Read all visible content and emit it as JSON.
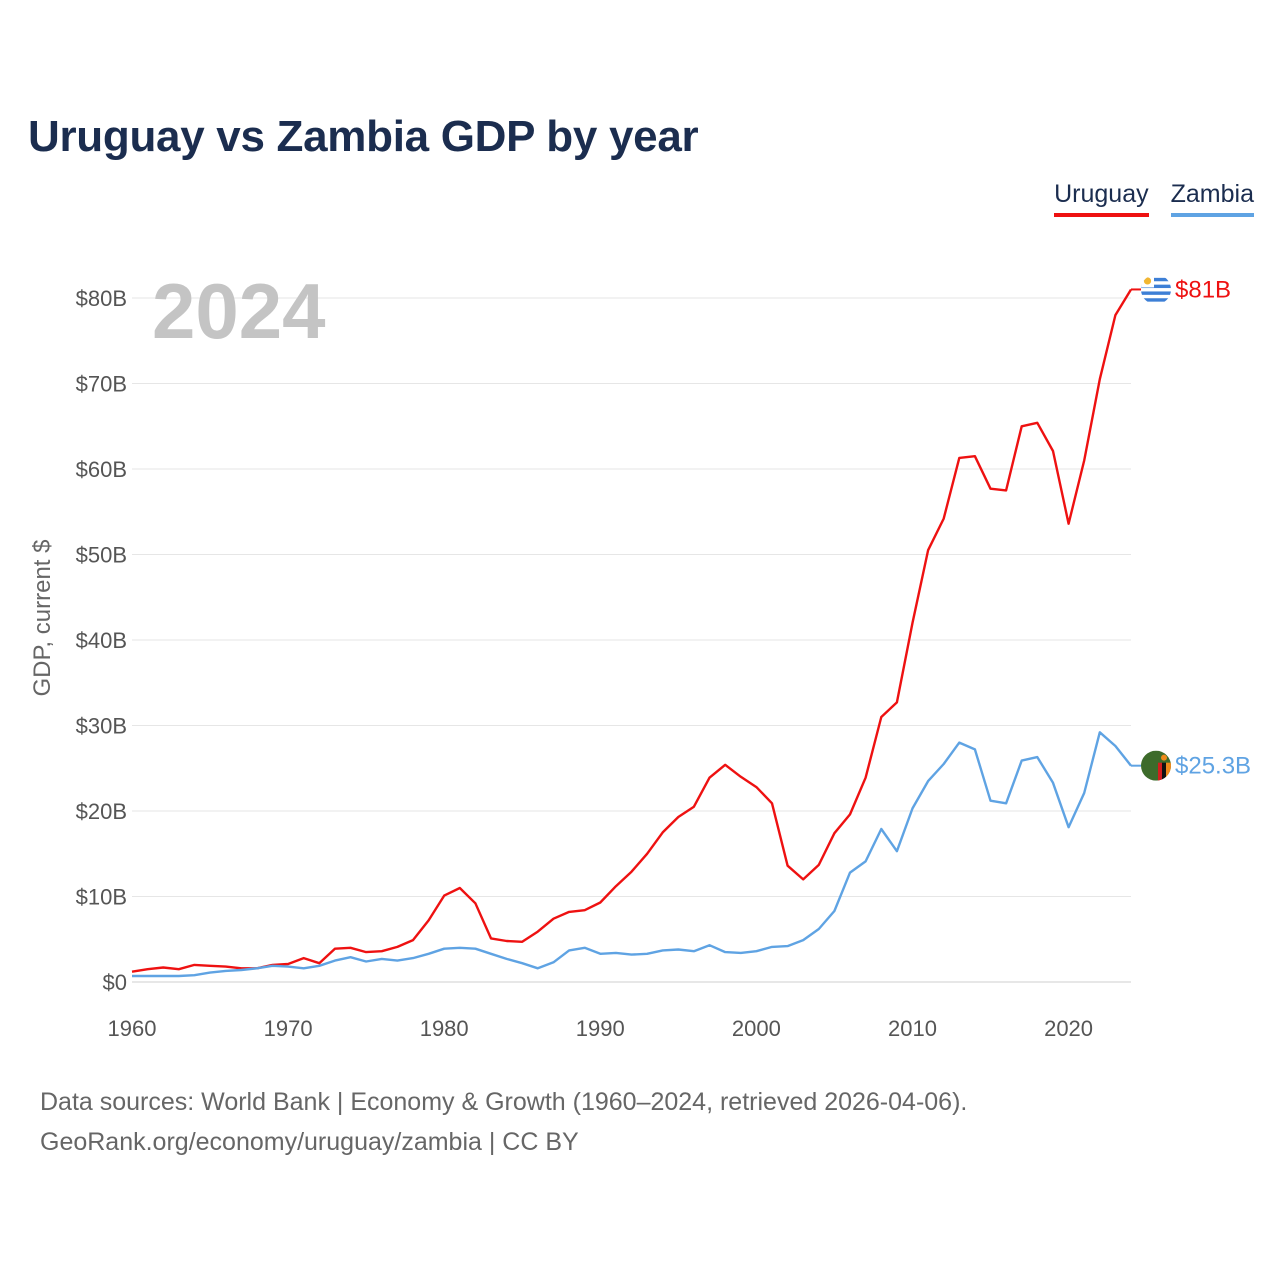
{
  "title": "Uruguay vs Zambia GDP by year",
  "legend": {
    "uruguay": "Uruguay",
    "zambia": "Zambia"
  },
  "year_watermark": "2024",
  "footer": {
    "line1": "Data sources: World Bank | Economy & Growth (1960–2024, retrieved 2026-04-06).",
    "line2": "GeoRank.org/economy/uruguay/zambia | CC BY"
  },
  "colors": {
    "uruguay": "#ee1111",
    "zambia": "#5fa3e3",
    "grid": "#e6e6e6",
    "axis_text": "#555555"
  },
  "chart_data": {
    "type": "line",
    "title": "Uruguay vs Zambia GDP by year",
    "ylabel": "GDP, current $",
    "xlabel": "",
    "xlim": [
      1960,
      2024
    ],
    "ylim": [
      0,
      80
    ],
    "y_unit": "billion USD",
    "x_ticks": [
      1960,
      1970,
      1980,
      1990,
      2000,
      2010,
      2020
    ],
    "y_ticks": [
      {
        "value": 0,
        "label": "$0"
      },
      {
        "value": 10,
        "label": "$10B"
      },
      {
        "value": 20,
        "label": "$20B"
      },
      {
        "value": 30,
        "label": "$30B"
      },
      {
        "value": 40,
        "label": "$40B"
      },
      {
        "value": 50,
        "label": "$50B"
      },
      {
        "value": 60,
        "label": "$60B"
      },
      {
        "value": 70,
        "label": "$70B"
      },
      {
        "value": 80,
        "label": "$80B"
      }
    ],
    "x": [
      1960,
      1961,
      1962,
      1963,
      1964,
      1965,
      1966,
      1967,
      1968,
      1969,
      1970,
      1971,
      1972,
      1973,
      1974,
      1975,
      1976,
      1977,
      1978,
      1979,
      1980,
      1981,
      1982,
      1983,
      1984,
      1985,
      1986,
      1987,
      1988,
      1989,
      1990,
      1991,
      1992,
      1993,
      1994,
      1995,
      1996,
      1997,
      1998,
      1999,
      2000,
      2001,
      2002,
      2003,
      2004,
      2005,
      2006,
      2007,
      2008,
      2009,
      2010,
      2011,
      2012,
      2013,
      2014,
      2015,
      2016,
      2017,
      2018,
      2019,
      2020,
      2021,
      2022,
      2023,
      2024
    ],
    "series": [
      {
        "name": "Uruguay",
        "color": "#ee1111",
        "end_label": "$81B",
        "values": [
          1.2,
          1.5,
          1.7,
          1.5,
          2.0,
          1.9,
          1.8,
          1.6,
          1.6,
          2.0,
          2.1,
          2.8,
          2.2,
          3.9,
          4.0,
          3.5,
          3.6,
          4.1,
          4.9,
          7.2,
          10.1,
          11.0,
          9.2,
          5.1,
          4.8,
          4.7,
          5.9,
          7.4,
          8.2,
          8.4,
          9.3,
          11.2,
          12.9,
          15.0,
          17.5,
          19.3,
          20.5,
          23.9,
          25.4,
          24.0,
          22.8,
          20.9,
          13.6,
          12.0,
          13.7,
          17.4,
          19.6,
          23.9,
          31.0,
          32.7,
          42.0,
          50.5,
          54.2,
          61.3,
          61.5,
          57.7,
          57.5,
          65.0,
          65.4,
          62.1,
          53.6,
          61.0,
          70.5,
          78.0,
          81.0
        ]
      },
      {
        "name": "Zambia",
        "color": "#5fa3e3",
        "end_label": "$25.3B",
        "values": [
          0.7,
          0.7,
          0.7,
          0.7,
          0.8,
          1.1,
          1.3,
          1.4,
          1.6,
          1.9,
          1.8,
          1.6,
          1.9,
          2.5,
          2.9,
          2.4,
          2.7,
          2.5,
          2.8,
          3.3,
          3.9,
          4.0,
          3.9,
          3.3,
          2.7,
          2.2,
          1.6,
          2.3,
          3.7,
          4.0,
          3.3,
          3.4,
          3.2,
          3.3,
          3.7,
          3.8,
          3.6,
          4.3,
          3.5,
          3.4,
          3.6,
          4.1,
          4.2,
          4.9,
          6.2,
          8.3,
          12.8,
          14.1,
          17.9,
          15.3,
          20.3,
          23.5,
          25.5,
          28.0,
          27.2,
          21.2,
          20.9,
          25.9,
          26.3,
          23.3,
          18.1,
          22.1,
          29.2,
          27.6,
          25.3
        ]
      }
    ]
  }
}
